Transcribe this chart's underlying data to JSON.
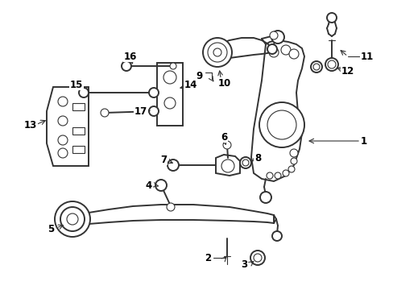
{
  "bg_color": "#ffffff",
  "line_color": "#333333",
  "fig_width": 4.89,
  "fig_height": 3.6,
  "dpi": 100,
  "lw_main": 1.4,
  "lw_thin": 0.8,
  "label_fontsize": 8.5
}
